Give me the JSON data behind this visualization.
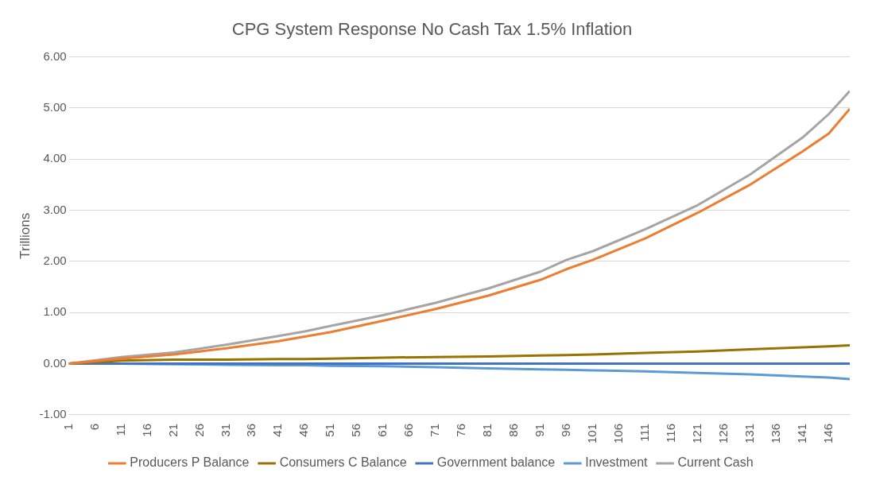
{
  "chart_data": {
    "type": "line",
    "title": "CPG System Response No Cash Tax 1.5% Inflation",
    "ylabel": "Trillions",
    "xlim": [
      1,
      150
    ],
    "xticks": [
      1,
      6,
      11,
      16,
      21,
      26,
      31,
      36,
      41,
      46,
      51,
      56,
      61,
      66,
      71,
      76,
      81,
      86,
      91,
      96,
      101,
      106,
      111,
      116,
      121,
      126,
      131,
      136,
      141,
      146
    ],
    "ylim": [
      -1,
      6
    ],
    "yticks": [
      {
        "value": -1,
        "label": "-1.00"
      },
      {
        "value": 0,
        "label": "0.00"
      },
      {
        "value": 1,
        "label": "1.00"
      },
      {
        "value": 2,
        "label": "2.00"
      },
      {
        "value": 3,
        "label": "3.00"
      },
      {
        "value": 4,
        "label": "4.00"
      },
      {
        "value": 5,
        "label": "5.00"
      },
      {
        "value": 6,
        "label": "6.00"
      }
    ],
    "grid": "y",
    "legend": "bottom",
    "marker": "none",
    "x": [
      1,
      11,
      21,
      31,
      41,
      46,
      51,
      61,
      71,
      81,
      91,
      96,
      101,
      111,
      121,
      131,
      141,
      146,
      150
    ],
    "series": [
      {
        "name": "Producers P Balance",
        "color": "#ed7d31",
        "values": [
          0,
          0.1,
          0.18,
          0.3,
          0.44,
          0.53,
          0.62,
          0.84,
          1.07,
          1.33,
          1.64,
          1.85,
          2.03,
          2.45,
          2.95,
          3.5,
          4.15,
          4.5,
          4.98
        ]
      },
      {
        "name": "Consumers C Balance",
        "color": "#997300",
        "values": [
          0,
          0.06,
          0.08,
          0.08,
          0.09,
          0.09,
          0.1,
          0.12,
          0.13,
          0.14,
          0.16,
          0.17,
          0.18,
          0.21,
          0.24,
          0.28,
          0.32,
          0.34,
          0.36
        ]
      },
      {
        "name": "Government balance",
        "color": "#4472c4",
        "values": [
          0,
          0,
          0,
          0,
          0,
          0,
          0,
          0,
          0,
          0,
          0,
          0,
          0,
          0,
          0,
          0,
          0,
          0,
          0
        ]
      },
      {
        "name": "Investment",
        "color": "#5b9bd5",
        "values": [
          0,
          0,
          -0.01,
          -0.02,
          -0.03,
          -0.03,
          -0.04,
          -0.05,
          -0.07,
          -0.09,
          -0.11,
          -0.12,
          -0.13,
          -0.15,
          -0.18,
          -0.21,
          -0.25,
          -0.27,
          -0.3
        ]
      },
      {
        "name": "Current Cash",
        "color": "#a5a5a5",
        "values": [
          0,
          0.13,
          0.22,
          0.37,
          0.54,
          0.63,
          0.74,
          0.95,
          1.19,
          1.47,
          1.8,
          2.03,
          2.2,
          2.63,
          3.1,
          3.7,
          4.42,
          4.88,
          5.33
        ]
      }
    ]
  }
}
